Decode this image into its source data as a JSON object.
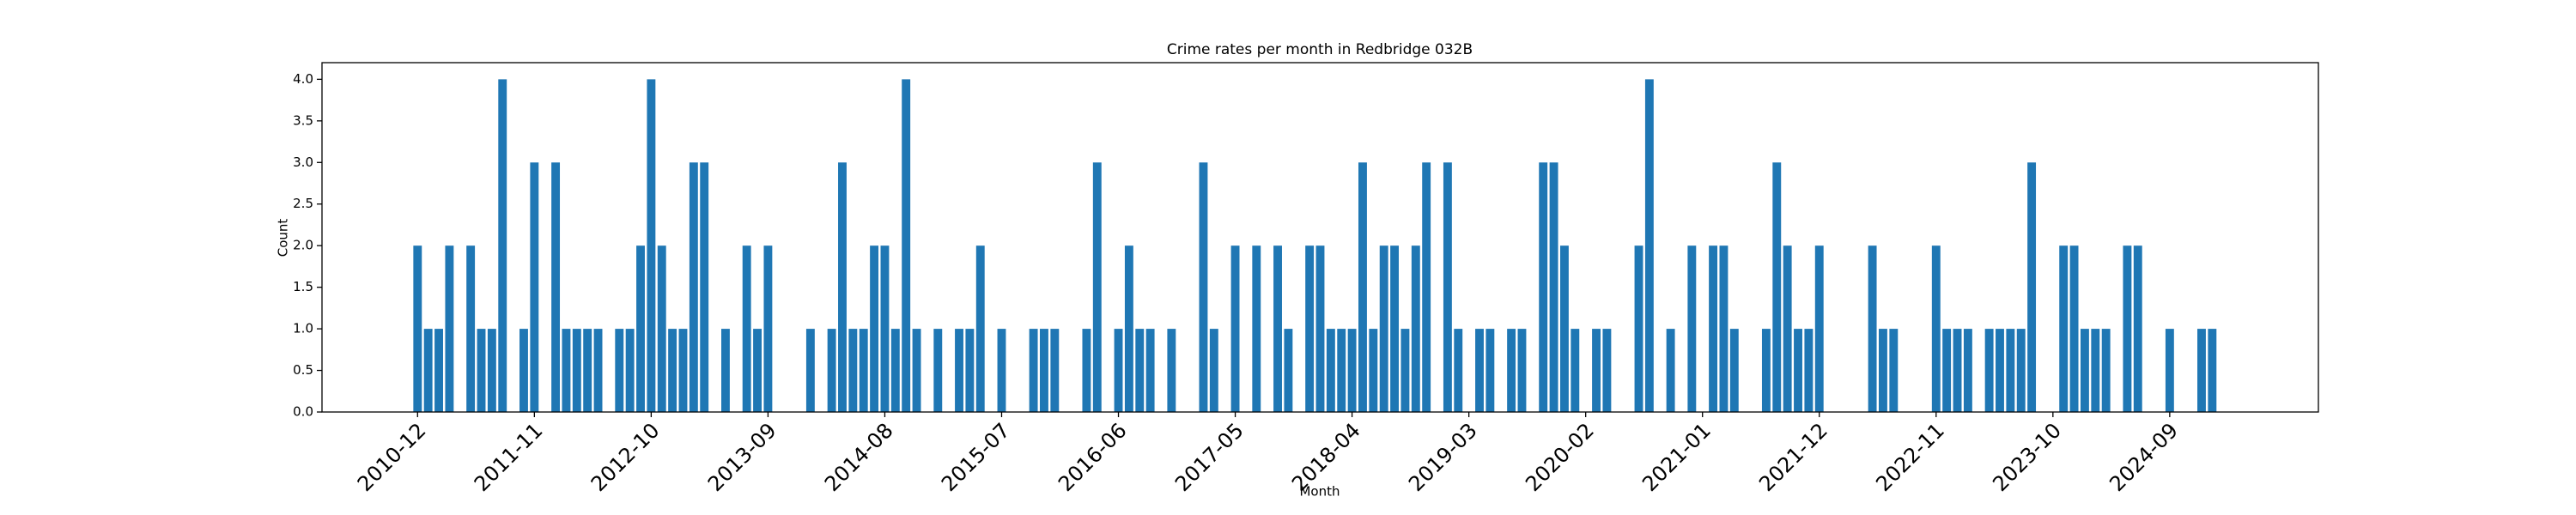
{
  "chart_data": {
    "type": "bar",
    "title": "Crime rates per month in Redbridge 032B",
    "xlabel": "Month",
    "ylabel": "Count",
    "color": "#1f77b4",
    "categories": [
      "2010-12",
      null,
      null,
      null,
      null,
      null,
      null,
      null,
      null,
      null,
      null,
      "2011-11",
      null,
      null,
      null,
      null,
      null,
      null,
      null,
      null,
      null,
      null,
      "2012-10",
      null,
      null,
      null,
      null,
      null,
      null,
      null,
      null,
      null,
      null,
      "2013-09",
      null,
      null,
      null,
      null,
      null,
      null,
      null,
      null,
      null,
      null,
      "2014-08",
      null,
      null,
      null,
      null,
      null,
      null,
      null,
      null,
      null,
      null,
      "2015-07",
      null,
      null,
      null,
      null,
      null,
      null,
      null,
      null,
      null,
      null,
      "2016-06",
      null,
      null,
      null,
      null,
      null,
      null,
      null,
      null,
      null,
      null,
      "2017-05",
      null,
      null,
      null,
      null,
      null,
      null,
      null,
      null,
      null,
      null,
      "2018-04",
      null,
      null,
      null,
      null,
      null,
      null,
      null,
      null,
      null,
      null,
      "2019-03",
      null,
      null,
      null,
      null,
      null,
      null,
      null,
      null,
      null,
      null,
      "2020-02",
      null,
      null,
      null,
      null,
      null,
      null,
      null,
      null,
      null,
      null,
      "2021-01",
      null,
      null,
      null,
      null,
      null,
      null,
      null,
      null,
      null,
      null,
      "2021-12",
      null,
      null,
      null,
      null,
      null,
      null,
      null,
      null,
      null,
      null,
      "2022-11",
      null,
      null,
      null,
      null,
      null,
      null,
      null,
      null,
      null,
      null,
      "2023-10",
      null,
      null,
      null,
      null,
      null,
      null,
      null,
      null,
      null,
      null,
      "2024-09",
      null,
      null,
      null,
      null
    ],
    "values": [
      2,
      1,
      1,
      2,
      0,
      2,
      1,
      1,
      4,
      0,
      1,
      3,
      0,
      3,
      1,
      1,
      1,
      1,
      0,
      1,
      1,
      2,
      4,
      2,
      1,
      1,
      3,
      3,
      0,
      1,
      0,
      2,
      1,
      2,
      0,
      0,
      0,
      1,
      0,
      1,
      3,
      1,
      1,
      2,
      2,
      1,
      4,
      1,
      0,
      1,
      0,
      1,
      1,
      2,
      0,
      1,
      0,
      0,
      1,
      1,
      1,
      0,
      0,
      1,
      3,
      0,
      1,
      2,
      1,
      1,
      0,
      1,
      0,
      0,
      3,
      1,
      0,
      2,
      0,
      2,
      0,
      2,
      1,
      0,
      2,
      2,
      1,
      1,
      1,
      3,
      1,
      2,
      2,
      1,
      2,
      3,
      0,
      3,
      1,
      0,
      1,
      1,
      0,
      1,
      1,
      0,
      3,
      3,
      2,
      1,
      0,
      1,
      1,
      0,
      0,
      2,
      4,
      0,
      1,
      0,
      2,
      0,
      2,
      2,
      1,
      0,
      0,
      1,
      3,
      2,
      1,
      1,
      2,
      0,
      0,
      0,
      0,
      2,
      1,
      1,
      0,
      0,
      0,
      2,
      1,
      1,
      1,
      0,
      1,
      1,
      1,
      1,
      3,
      0,
      0,
      2,
      2,
      1,
      1,
      1,
      0,
      2,
      2,
      0,
      0,
      1,
      0,
      0,
      1,
      1
    ],
    "ylim": [
      0,
      4.2
    ],
    "yticks": [
      {
        "value": 0,
        "label": "0.0"
      },
      0.5,
      {
        "value": 1,
        "label": "1.0"
      },
      1.5,
      {
        "value": 2,
        "label": "2.0"
      },
      2.5,
      {
        "value": 3,
        "label": "3.0"
      },
      3.5,
      {
        "value": 4,
        "label": "4.0"
      }
    ]
  }
}
